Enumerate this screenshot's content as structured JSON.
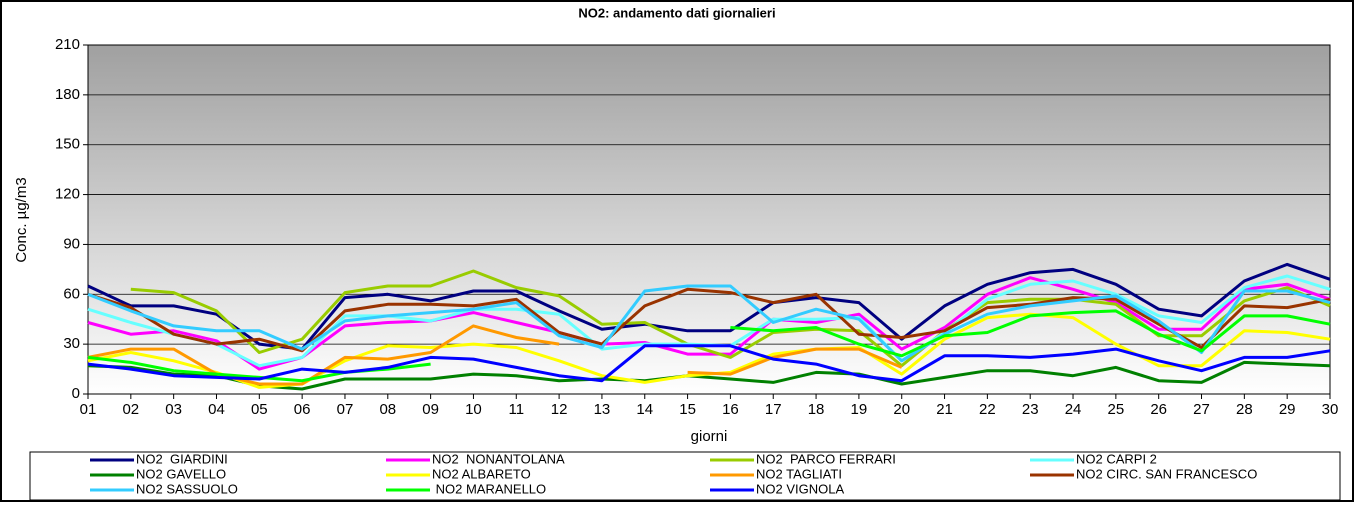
{
  "chart_data": {
    "type": "line",
    "title": "NO2: andamento dati giornalieri",
    "y_label": "Conc.  µg/m3",
    "x_label": "giorni",
    "categories": [
      "01",
      "02",
      "03",
      "04",
      "05",
      "06",
      "07",
      "08",
      "09",
      "10",
      "11",
      "12",
      "13",
      "14",
      "15",
      "16",
      "17",
      "18",
      "19",
      "20",
      "21",
      "22",
      "23",
      "24",
      "25",
      "26",
      "27",
      "28",
      "29",
      "30"
    ],
    "ylim": [
      0,
      210
    ],
    "yticks": [
      0,
      30,
      60,
      90,
      120,
      150,
      180,
      210
    ],
    "grid": true,
    "series": [
      {
        "name": "NO2  GIARDINI",
        "color": "#000080",
        "values": [
          65,
          53,
          53,
          48,
          30,
          27,
          58,
          60,
          56,
          62,
          62,
          50,
          39,
          42,
          38,
          38,
          55,
          58,
          55,
          33,
          53,
          66,
          73,
          75,
          66,
          51,
          47,
          68,
          78,
          69
        ]
      },
      {
        "name": "NO2  NONANTOLANA",
        "color": "#ff00ff",
        "values": [
          43,
          36,
          38,
          32,
          15,
          22,
          41,
          43,
          44,
          49,
          43,
          37,
          30,
          31,
          24,
          24,
          45,
          43,
          48,
          27,
          40,
          60,
          70,
          63,
          55,
          39,
          39,
          63,
          66,
          57
        ]
      },
      {
        "name": "NO2  PARCO FERRARI",
        "color": "#99cc00",
        "values": [
          null,
          63,
          61,
          50,
          25,
          33,
          61,
          65,
          65,
          74,
          64,
          59,
          42,
          43,
          30,
          22,
          37,
          39,
          38,
          17,
          38,
          55,
          57,
          57,
          54,
          35,
          35,
          56,
          64,
          53
        ]
      },
      {
        "name": "NO2 CARPI 2",
        "color": "#66ffff",
        "values": [
          51,
          43,
          36,
          30,
          17,
          22,
          47,
          47,
          44,
          51,
          51,
          48,
          27,
          30,
          30,
          29,
          45,
          45,
          46,
          20,
          37,
          57,
          66,
          68,
          60,
          47,
          43,
          64,
          71,
          63
        ]
      },
      {
        "name": "NO2 GAVELLO",
        "color": "#008000",
        "values": [
          17,
          16,
          12,
          11,
          5,
          3,
          9,
          9,
          9,
          12,
          11,
          8,
          9,
          8,
          11,
          9,
          7,
          13,
          12,
          6,
          10,
          14,
          14,
          11,
          16,
          8,
          7,
          19,
          18,
          17
        ]
      },
      {
        "name": "NO2 ALBARETO",
        "color": "#ffff00",
        "values": [
          20,
          25,
          20,
          13,
          4,
          6,
          20,
          29,
          28,
          30,
          28,
          20,
          11,
          7,
          11,
          13,
          24,
          27,
          28,
          12,
          33,
          46,
          48,
          46,
          30,
          17,
          17,
          38,
          37,
          33
        ]
      },
      {
        "name": "NO2 TAGLIATI",
        "color": "#ff9900",
        "values": [
          22,
          27,
          27,
          12,
          6,
          6,
          22,
          21,
          25,
          41,
          34,
          30,
          null,
          null,
          13,
          12,
          22,
          27,
          27,
          16,
          null,
          null,
          null,
          null,
          null,
          null,
          null,
          null,
          null,
          null
        ]
      },
      {
        "name": "NO2 CIRC. SAN FRANCESCO",
        "color": "#993300",
        "values": [
          60,
          52,
          36,
          30,
          33,
          26,
          50,
          54,
          54,
          53,
          57,
          37,
          30,
          53,
          63,
          61,
          55,
          60,
          36,
          34,
          38,
          52,
          54,
          58,
          57,
          42,
          28,
          53,
          52,
          57
        ]
      },
      {
        "name": "NO2 SASSUOLO",
        "color": "#33ccff",
        "values": [
          60,
          50,
          41,
          38,
          38,
          27,
          44,
          47,
          49,
          51,
          55,
          35,
          28,
          62,
          65,
          65,
          43,
          51,
          45,
          20,
          36,
          48,
          53,
          56,
          59,
          44,
          25,
          62,
          62,
          55
        ]
      },
      {
        "name": " NO2 MARANELLO",
        "color": "#00ff00",
        "values": [
          22,
          19,
          14,
          12,
          10,
          8,
          13,
          15,
          18,
          null,
          null,
          null,
          null,
          null,
          null,
          40,
          38,
          40,
          30,
          23,
          35,
          37,
          47,
          49,
          50,
          36,
          26,
          47,
          47,
          42
        ]
      },
      {
        "name": "NO2 VIGNOLA",
        "color": "#0000ff",
        "values": [
          18,
          15,
          11,
          10,
          9,
          15,
          13,
          16,
          22,
          21,
          16,
          11,
          8,
          29,
          29,
          29,
          21,
          18,
          11,
          8,
          23,
          23,
          22,
          24,
          27,
          20,
          14,
          22,
          22,
          26
        ]
      }
    ]
  }
}
